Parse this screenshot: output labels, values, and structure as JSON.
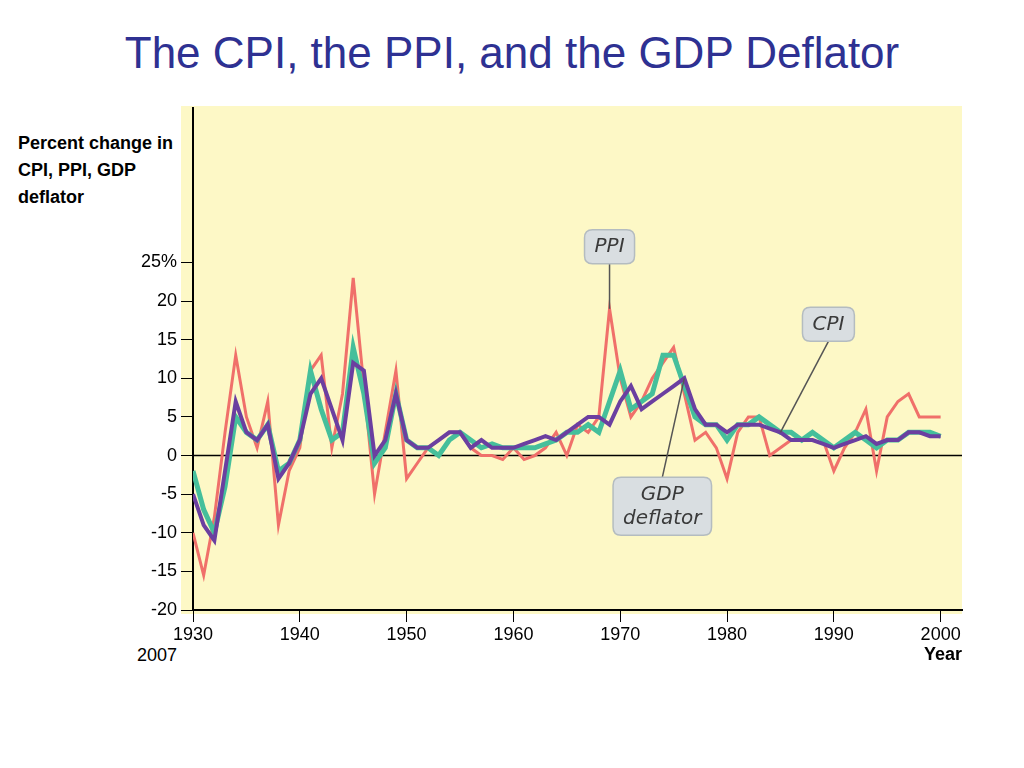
{
  "chart_data": {
    "type": "line",
    "title": "The CPI, the PPI, and the GDP Deflator",
    "y_label": "Percent change in CPI, PPI, GDP deflator",
    "x_label": "Year",
    "annotation": "2007",
    "x": [
      1930,
      1931,
      1932,
      1933,
      1934,
      1935,
      1936,
      1937,
      1938,
      1939,
      1940,
      1941,
      1942,
      1943,
      1944,
      1945,
      1946,
      1947,
      1948,
      1949,
      1950,
      1951,
      1952,
      1953,
      1954,
      1955,
      1956,
      1957,
      1958,
      1959,
      1960,
      1961,
      1962,
      1963,
      1964,
      1965,
      1966,
      1967,
      1968,
      1969,
      1970,
      1971,
      1972,
      1973,
      1974,
      1975,
      1976,
      1977,
      1978,
      1979,
      1980,
      1981,
      1982,
      1983,
      1984,
      1985,
      1986,
      1987,
      1988,
      1989,
      1990,
      1991,
      1992,
      1993,
      1994,
      1995,
      1996,
      1997,
      1998,
      1999,
      2000
    ],
    "series": [
      {
        "name": "PPI",
        "color": "#f0706a",
        "values": [
          -10,
          -15.5,
          -8,
          3,
          13,
          5,
          1,
          7,
          -9,
          -2,
          1,
          11,
          13,
          1,
          8,
          23,
          9,
          -5,
          3,
          11,
          -3,
          -1,
          1,
          2,
          3,
          3,
          1,
          0,
          0,
          -0.5,
          1,
          -0.5,
          0,
          1,
          3,
          0,
          4,
          3,
          5,
          19,
          10,
          5,
          7,
          10,
          12,
          14,
          8,
          2,
          3,
          1,
          -3,
          3,
          5,
          5,
          0,
          1,
          2,
          2,
          3,
          2,
          -2,
          1,
          3,
          6,
          -2,
          5,
          7,
          8,
          5,
          5,
          5
        ]
      },
      {
        "name": "CPI",
        "color": "#45bf9b",
        "values": [
          -2,
          -7,
          -10,
          -4,
          5,
          3,
          2,
          4,
          -2,
          -1,
          2,
          11,
          6,
          2,
          3,
          14,
          8,
          -1,
          1,
          8,
          2,
          1,
          1,
          0,
          2,
          3,
          2,
          1,
          1.5,
          1,
          1,
          1,
          1,
          1.5,
          2,
          3,
          3,
          4,
          3,
          7,
          11,
          6,
          7,
          8,
          13,
          13,
          9,
          5,
          4,
          4,
          2,
          4,
          4,
          5,
          4,
          3,
          3,
          2,
          3,
          2,
          1,
          2,
          3,
          2,
          1,
          2,
          2,
          3,
          3,
          3,
          2.5
        ]
      },
      {
        "name": "GDP deflator",
        "color": "#6b3fa0",
        "values": [
          -5,
          -9,
          -11,
          -2,
          7,
          3,
          2,
          4,
          -3,
          -1,
          2,
          8,
          10,
          6,
          2,
          12,
          11,
          0,
          2,
          8,
          2,
          1,
          1,
          2,
          3,
          3,
          1,
          2,
          1,
          1,
          1,
          1.5,
          2,
          2.5,
          2,
          3,
          4,
          5,
          5,
          4,
          7,
          9,
          6,
          7,
          8,
          9,
          10,
          6,
          4,
          4,
          3,
          4,
          4,
          4,
          3.5,
          3,
          2,
          2,
          2,
          1.5,
          1,
          1.5,
          2,
          2.5,
          1.5,
          2,
          2,
          3,
          3,
          2.5,
          2.5
        ]
      }
    ],
    "xlim": [
      1930,
      2002
    ],
    "xticks": [
      1930,
      1940,
      1950,
      1960,
      1970,
      1980,
      1990,
      2000
    ],
    "ylim": [
      -20,
      45
    ],
    "yticks": [
      -20,
      -15,
      -10,
      -5,
      0,
      5,
      10,
      15,
      20,
      {
        "value": 25,
        "label": "25%"
      }
    ],
    "grid": false
  }
}
